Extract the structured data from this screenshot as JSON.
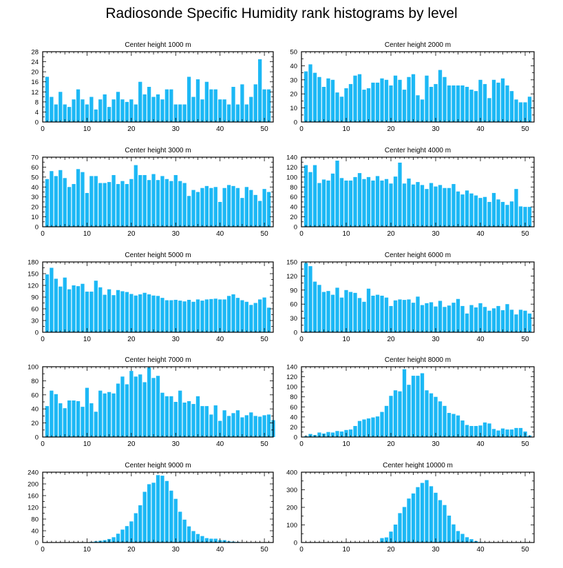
{
  "title": "Radiosonde Specific Humidity rank histograms by level",
  "colors": {
    "bar": "#1cb8f5",
    "axis": "#000000",
    "background": "#ffffff"
  },
  "chart_data": [
    {
      "type": "bar",
      "title": "Center height 1000 m",
      "xlabel": "",
      "ylabel": "",
      "xlim": [
        0,
        52
      ],
      "ylim": [
        0,
        28
      ],
      "xticks": [
        0,
        10,
        20,
        30,
        40,
        50
      ],
      "yticks": [
        0,
        4,
        8,
        12,
        16,
        20,
        24,
        28
      ],
      "values": [
        18,
        10,
        7,
        12,
        7,
        6,
        9,
        13,
        9,
        7,
        10,
        5,
        9,
        11,
        6,
        9,
        12,
        9,
        8,
        9,
        7,
        16,
        11,
        14,
        10,
        11,
        9,
        13,
        13,
        7,
        7,
        7,
        18,
        10,
        17,
        9,
        16,
        13,
        13,
        9,
        9,
        7,
        14,
        7,
        15,
        7,
        10,
        15,
        25,
        13,
        13
      ]
    },
    {
      "type": "bar",
      "title": "Center height 2000 m",
      "xlabel": "",
      "ylabel": "",
      "xlim": [
        0,
        52
      ],
      "ylim": [
        0,
        50
      ],
      "xticks": [
        0,
        10,
        20,
        30,
        40,
        50
      ],
      "yticks": [
        0,
        10,
        20,
        30,
        40,
        50
      ],
      "values": [
        36,
        41,
        35,
        32,
        25,
        31,
        30,
        21,
        18,
        24,
        27,
        33,
        34,
        23,
        24,
        28,
        28,
        31,
        30,
        26,
        33,
        30,
        23,
        32,
        34,
        19,
        16,
        33,
        25,
        27,
        37,
        32,
        26,
        26,
        26,
        26,
        25,
        23,
        22,
        30,
        27,
        17,
        30,
        28,
        31,
        26,
        22,
        16,
        14,
        14,
        18
      ]
    },
    {
      "type": "bar",
      "title": "Center height 3000 m",
      "xlabel": "",
      "ylabel": "",
      "xlim": [
        0,
        52
      ],
      "ylim": [
        0,
        70
      ],
      "xticks": [
        0,
        10,
        20,
        30,
        40,
        50
      ],
      "yticks": [
        0,
        10,
        20,
        30,
        40,
        50,
        60,
        70
      ],
      "values": [
        48,
        56,
        51,
        57,
        49,
        40,
        43,
        58,
        55,
        34,
        51,
        51,
        44,
        44,
        45,
        52,
        43,
        46,
        43,
        48,
        62,
        52,
        52,
        47,
        53,
        47,
        51,
        48,
        46,
        52,
        46,
        44,
        31,
        37,
        35,
        39,
        41,
        39,
        40,
        25,
        39,
        42,
        41,
        39,
        29,
        40,
        37,
        32,
        26,
        38,
        35
      ]
    },
    {
      "type": "bar",
      "title": "Center height 4000 m",
      "xlabel": "",
      "ylabel": "",
      "xlim": [
        0,
        52
      ],
      "ylim": [
        0,
        140
      ],
      "xticks": [
        0,
        10,
        20,
        30,
        40,
        50
      ],
      "yticks": [
        0,
        20,
        40,
        60,
        80,
        100,
        120,
        140
      ],
      "values": [
        124,
        110,
        124,
        88,
        95,
        93,
        107,
        133,
        98,
        93,
        93,
        100,
        108,
        96,
        100,
        93,
        102,
        93,
        96,
        87,
        101,
        129,
        87,
        97,
        85,
        90,
        84,
        76,
        88,
        81,
        84,
        78,
        78,
        86,
        71,
        65,
        73,
        67,
        63,
        58,
        60,
        50,
        68,
        55,
        50,
        44,
        51,
        76,
        41,
        40,
        40
      ]
    },
    {
      "type": "bar",
      "title": "Center height 5000 m",
      "xlabel": "",
      "ylabel": "",
      "xlim": [
        0,
        52
      ],
      "ylim": [
        0,
        180
      ],
      "xticks": [
        0,
        10,
        20,
        30,
        40,
        50
      ],
      "yticks": [
        0,
        30,
        60,
        90,
        120,
        150,
        180
      ],
      "values": [
        148,
        165,
        137,
        117,
        140,
        110,
        120,
        118,
        124,
        104,
        104,
        132,
        115,
        96,
        110,
        95,
        108,
        105,
        103,
        98,
        94,
        97,
        101,
        97,
        94,
        93,
        88,
        82,
        82,
        83,
        81,
        79,
        83,
        78,
        84,
        81,
        84,
        85,
        86,
        84,
        84,
        93,
        97,
        88,
        82,
        78,
        70,
        75,
        84,
        89,
        63
      ]
    },
    {
      "type": "bar",
      "title": "Center height 6000 m",
      "xlabel": "",
      "ylabel": "",
      "xlim": [
        0,
        52
      ],
      "ylim": [
        0,
        150
      ],
      "xticks": [
        0,
        10,
        20,
        30,
        40,
        50
      ],
      "yticks": [
        0,
        30,
        60,
        90,
        120,
        150
      ],
      "values": [
        148,
        141,
        108,
        101,
        86,
        88,
        80,
        95,
        74,
        90,
        86,
        84,
        73,
        65,
        93,
        78,
        80,
        78,
        74,
        56,
        68,
        70,
        69,
        70,
        63,
        76,
        58,
        62,
        64,
        55,
        67,
        54,
        57,
        63,
        71,
        56,
        40,
        58,
        53,
        62,
        54,
        46,
        51,
        56,
        47,
        60,
        48,
        38,
        48,
        46,
        40
      ]
    },
    {
      "type": "bar",
      "title": "Center height 7000 m",
      "xlabel": "",
      "ylabel": "",
      "xlim": [
        0,
        52
      ],
      "ylim": [
        0,
        100
      ],
      "xticks": [
        0,
        10,
        20,
        30,
        40,
        50
      ],
      "yticks": [
        0,
        20,
        40,
        60,
        80,
        100
      ],
      "values": [
        44,
        66,
        61,
        48,
        41,
        52,
        52,
        51,
        43,
        70,
        48,
        36,
        66,
        62,
        64,
        62,
        76,
        86,
        75,
        94,
        86,
        89,
        78,
        99,
        84,
        87,
        63,
        58,
        58,
        50,
        66,
        49,
        51,
        47,
        58,
        44,
        44,
        32,
        45,
        23,
        38,
        30,
        34,
        38,
        28,
        31,
        35,
        30,
        29,
        31,
        32,
        24
      ]
    },
    {
      "type": "bar",
      "title": "Center height 8000 m",
      "xlabel": "",
      "ylabel": "",
      "xlim": [
        0,
        52
      ],
      "ylim": [
        0,
        140
      ],
      "xticks": [
        0,
        10,
        20,
        30,
        40,
        50
      ],
      "yticks": [
        0,
        20,
        40,
        60,
        80,
        100,
        120,
        140
      ],
      "values": [
        2,
        6,
        4,
        9,
        7,
        10,
        9,
        12,
        11,
        14,
        15,
        22,
        32,
        35,
        37,
        39,
        41,
        50,
        62,
        82,
        93,
        91,
        135,
        104,
        122,
        122,
        127,
        93,
        87,
        80,
        71,
        62,
        48,
        46,
        43,
        33,
        24,
        22,
        22,
        23,
        29,
        27,
        16,
        13,
        17,
        15,
        15,
        18,
        18,
        11,
        3
      ]
    },
    {
      "type": "bar",
      "title": "Center height 9000 m",
      "xlabel": "",
      "ylabel": "",
      "xlim": [
        0,
        52
      ],
      "ylim": [
        0,
        240
      ],
      "xticks": [
        0,
        10,
        20,
        30,
        40,
        50
      ],
      "yticks": [
        0,
        40,
        80,
        120,
        160,
        200,
        240
      ],
      "values": [
        0,
        0,
        0,
        0,
        0,
        0,
        0,
        0,
        0,
        0,
        2,
        4,
        6,
        8,
        12,
        18,
        30,
        44,
        56,
        72,
        100,
        127,
        173,
        199,
        204,
        230,
        228,
        210,
        177,
        149,
        105,
        78,
        55,
        39,
        29,
        22,
        15,
        13,
        13,
        8,
        8,
        4,
        3,
        2,
        1,
        0,
        0,
        0,
        0,
        0,
        0,
        0
      ]
    },
    {
      "type": "bar",
      "title": "Center height 10000 m",
      "xlabel": "",
      "ylabel": "",
      "xlim": [
        0,
        52
      ],
      "ylim": [
        0,
        400
      ],
      "xticks": [
        0,
        10,
        20,
        30,
        40,
        50
      ],
      "yticks": [
        0,
        100,
        200,
        300,
        400
      ],
      "values": [
        0,
        0,
        0,
        0,
        0,
        0,
        0,
        0,
        0,
        0,
        0,
        0,
        0,
        0,
        0,
        0,
        0,
        25,
        29,
        62,
        102,
        167,
        202,
        250,
        279,
        315,
        339,
        355,
        320,
        283,
        241,
        213,
        153,
        103,
        65,
        49,
        30,
        19,
        8,
        3,
        2,
        1,
        0,
        0,
        0,
        0,
        0,
        0,
        0,
        0,
        0,
        0
      ]
    }
  ]
}
